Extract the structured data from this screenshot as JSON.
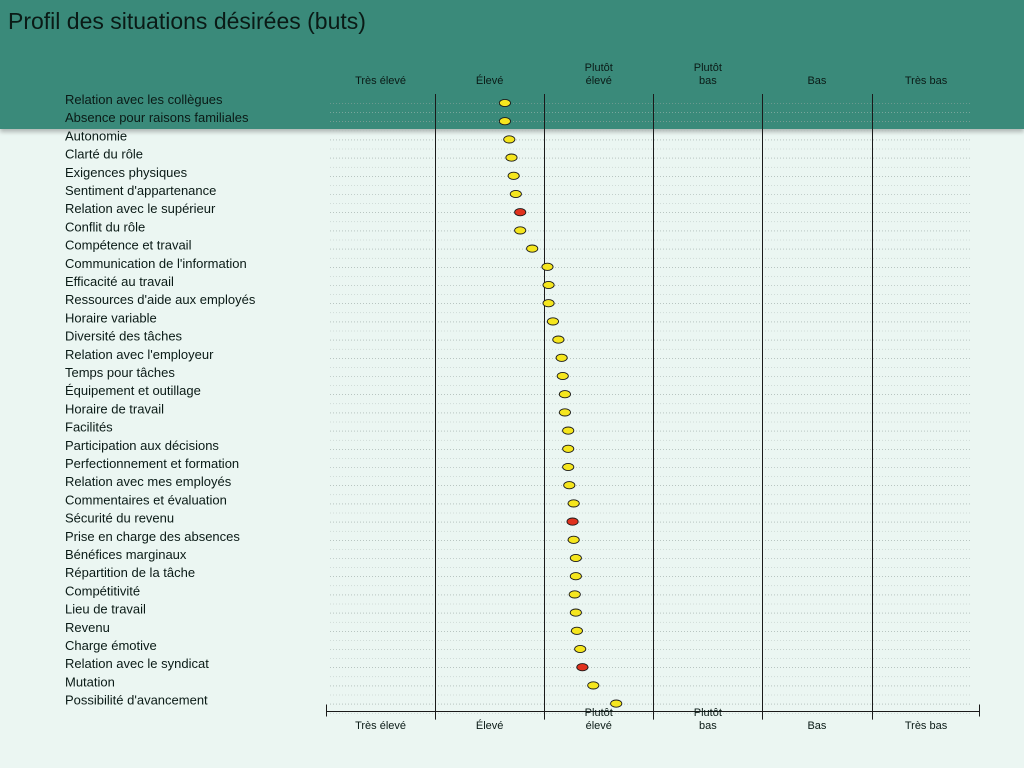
{
  "title": "Profil des situations désirées (buts)",
  "chart_data": {
    "type": "scatter",
    "title": "Profil des situations désirées (buts)",
    "scale_columns": [
      [
        "Très élevé"
      ],
      [
        "Élevé"
      ],
      [
        "Plutôt",
        "élevé"
      ],
      [
        "Plutôt",
        "bas"
      ],
      [
        "Bas"
      ],
      [
        "Très bas"
      ]
    ],
    "x_range": [
      0,
      6
    ],
    "grid": true,
    "marker_colors": {
      "normal": "#f5e61e",
      "highlight": "#e0321e"
    },
    "items": [
      {
        "label": "Relation avec les collègues",
        "value": 1.64,
        "highlight": false
      },
      {
        "label": "Absence pour raisons familiales",
        "value": 1.64,
        "highlight": false
      },
      {
        "label": "Autonomie",
        "value": 1.68,
        "highlight": false
      },
      {
        "label": "Clarté du rôle",
        "value": 1.7,
        "highlight": false
      },
      {
        "label": "Exigences physiques",
        "value": 1.72,
        "highlight": false
      },
      {
        "label": "Sentiment d'appartenance",
        "value": 1.74,
        "highlight": false
      },
      {
        "label": "Relation avec le supérieur",
        "value": 1.78,
        "highlight": true
      },
      {
        "label": "Conflit du rôle",
        "value": 1.78,
        "highlight": false
      },
      {
        "label": "Compétence et travail",
        "value": 1.89,
        "highlight": false
      },
      {
        "label": "Communication de l'information",
        "value": 2.03,
        "highlight": false
      },
      {
        "label": "Efficacité au travail",
        "value": 2.04,
        "highlight": false
      },
      {
        "label": "Ressources d'aide aux employés",
        "value": 2.04,
        "highlight": false
      },
      {
        "label": "Horaire variable",
        "value": 2.08,
        "highlight": false
      },
      {
        "label": "Diversité des tâches",
        "value": 2.13,
        "highlight": false
      },
      {
        "label": "Relation avec l'employeur",
        "value": 2.16,
        "highlight": false
      },
      {
        "label": "Temps pour tâches",
        "value": 2.17,
        "highlight": false
      },
      {
        "label": "Équipement et outillage",
        "value": 2.19,
        "highlight": false
      },
      {
        "label": "Horaire de travail",
        "value": 2.19,
        "highlight": false
      },
      {
        "label": "Facilités",
        "value": 2.22,
        "highlight": false
      },
      {
        "label": "Participation aux décisions",
        "value": 2.22,
        "highlight": false
      },
      {
        "label": "Perfectionnement et formation",
        "value": 2.22,
        "highlight": false
      },
      {
        "label": "Relation avec mes employés",
        "value": 2.23,
        "highlight": false
      },
      {
        "label": "Commentaires et évaluation",
        "value": 2.27,
        "highlight": false
      },
      {
        "label": "Sécurité du revenu",
        "value": 2.26,
        "highlight": true
      },
      {
        "label": "Prise en charge des absences",
        "value": 2.27,
        "highlight": false
      },
      {
        "label": "Bénéfices marginaux",
        "value": 2.29,
        "highlight": false
      },
      {
        "label": "Répartition de la tâche",
        "value": 2.29,
        "highlight": false
      },
      {
        "label": "Compétitivité",
        "value": 2.28,
        "highlight": false
      },
      {
        "label": "Lieu de travail",
        "value": 2.29,
        "highlight": false
      },
      {
        "label": "Revenu",
        "value": 2.3,
        "highlight": false
      },
      {
        "label": "Charge émotive",
        "value": 2.33,
        "highlight": false
      },
      {
        "label": "Relation avec le syndicat",
        "value": 2.35,
        "highlight": true
      },
      {
        "label": "Mutation",
        "value": 2.45,
        "highlight": false
      },
      {
        "label": "Possibilité d'avancement",
        "value": 2.66,
        "highlight": false
      }
    ]
  }
}
